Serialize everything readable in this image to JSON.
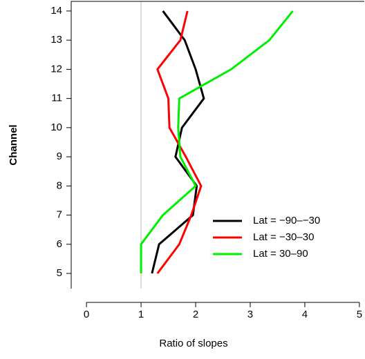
{
  "chart_data": {
    "type": "line",
    "x_label": "Ratio of slopes",
    "y_label": "Channel",
    "y": [
      5,
      6,
      7,
      8,
      9,
      10,
      11,
      12,
      13,
      14
    ],
    "series": [
      {
        "name": "Lat = −90–−30",
        "color": "#000000",
        "values": [
          1.2,
          1.33,
          1.95,
          2.02,
          1.63,
          1.75,
          2.15,
          2.0,
          1.8,
          1.4
        ]
      },
      {
        "name": "Lat = −30–30",
        "color": "#ff0000",
        "values": [
          1.3,
          1.7,
          1.92,
          2.1,
          1.82,
          1.52,
          1.5,
          1.3,
          1.72,
          1.85
        ]
      },
      {
        "name": "Lat = 30–90",
        "color": "#00ee00",
        "values": [
          1.0,
          1.0,
          1.4,
          2.0,
          1.72,
          1.68,
          1.7,
          2.65,
          3.35,
          3.78
        ]
      }
    ],
    "xlim": [
      -0.28,
      5.09
    ],
    "xticks": [
      0,
      1,
      2,
      3,
      4,
      5
    ],
    "ylim": [
      4.48,
      14.33
    ],
    "yticks": [
      5,
      6,
      7,
      8,
      9,
      10,
      11,
      12,
      13,
      14
    ],
    "reference_x": 1,
    "legend": "bottom-right"
  }
}
